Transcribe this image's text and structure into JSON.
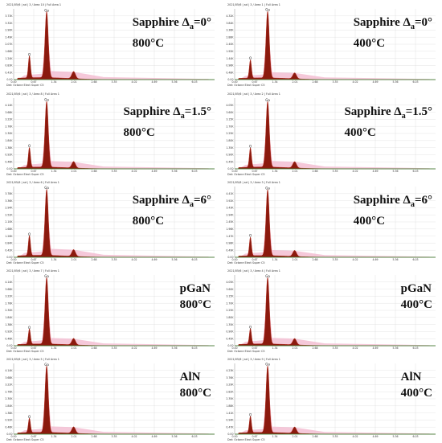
{
  "colors": {
    "spectrum_fill": "#8B1A0E",
    "spectrum_edge": "#B52010",
    "envelope_fill": "#F2B5CC",
    "baseline": "#2E8B3A",
    "grid": "#DDDDDD",
    "axis": "#888888"
  },
  "chart_data": [
    {
      "type": "area",
      "title_line1": "Sapphire Δ",
      "title_sub": "a",
      "title_eq": "=0°",
      "title_line2": "800°C",
      "header": "2021/05/6 | ad | 3 / Area 10 | Full Area 1",
      "footer": "Det: Octane Elect Super C5",
      "x_ticks": [
        "0.00",
        "0.67",
        "1.34",
        "2.01",
        "2.68",
        "3.35",
        "4.02",
        "4.69",
        "5.36",
        "6.03"
      ],
      "y_ticks": [
        "0.00",
        "0.41K",
        "0.83K",
        "1.24K",
        "1.66K",
        "2.07K",
        "2.49K",
        "2.90K",
        "3.32K",
        "3.73K"
      ],
      "ylim": [
        0,
        4.15
      ],
      "xlim": [
        0,
        6.7
      ],
      "peaks": [
        {
          "label": "O",
          "x": 0.525,
          "y": 1.3
        },
        {
          "label": "Ga",
          "x": 1.1,
          "y": 3.9
        },
        {
          "label": "",
          "x": 2.0,
          "y": 0.42
        }
      ]
    },
    {
      "type": "area",
      "title_line1": "Sapphire Δ",
      "title_sub": "a",
      "title_eq": "=0°",
      "title_line2": "400°C",
      "header": "2021/05/6 | ad | 3 / Area 1 | Full Area 1",
      "footer": "Det: Octane Elect Super C5",
      "x_ticks": [
        "0.00",
        "0.67",
        "1.34",
        "2.01",
        "2.68",
        "3.35",
        "4.02",
        "4.69",
        "5.36",
        "6.03"
      ],
      "y_ticks": [
        "0.00",
        "0.48K",
        "0.96K",
        "1.44K",
        "1.92K",
        "2.40K",
        "2.88K",
        "3.36K",
        "3.84K",
        "4.32K"
      ],
      "ylim": [
        0,
        4.8
      ],
      "xlim": [
        0,
        6.7
      ],
      "peaks": [
        {
          "label": "O",
          "x": 0.525,
          "y": 1.25
        },
        {
          "label": "Ga",
          "x": 1.1,
          "y": 4.55
        },
        {
          "label": "",
          "x": 2.0,
          "y": 0.4
        }
      ]
    },
    {
      "type": "area",
      "title_line1": "Sapphire Δ",
      "title_sub": "a",
      "title_eq": "=1.5°",
      "title_line2": "800°C",
      "header": "2021/05/6 | ad | 3 / Area 8 | Full Area 1",
      "footer": "Det: Octane Elect Super C5",
      "x_ticks": [
        "0.00",
        "0.67",
        "1.34",
        "2.01",
        "2.68",
        "3.35",
        "4.02",
        "4.69",
        "5.36",
        "6.03"
      ],
      "y_ticks": [
        "0.00",
        "0.46K",
        "0.92K",
        "1.38K",
        "1.84K",
        "2.30K",
        "2.76K",
        "3.22K",
        "3.68K",
        "4.14K"
      ],
      "ylim": [
        0,
        4.6
      ],
      "xlim": [
        0,
        6.7
      ],
      "peaks": [
        {
          "label": "O",
          "x": 0.525,
          "y": 1.3
        },
        {
          "label": "Ga",
          "x": 1.1,
          "y": 4.3
        },
        {
          "label": "",
          "x": 2.0,
          "y": 0.42
        }
      ]
    },
    {
      "type": "area",
      "title_line1": "Sapphire Δ",
      "title_sub": "a",
      "title_eq": "=1.5°",
      "title_line2": "400°C",
      "header": "2021/05/6 | ad | 3 / Area 2 | Full Area 1",
      "footer": "Det: Octane Elect Super C5",
      "x_ticks": [
        "0.00",
        "0.67",
        "1.34",
        "2.01",
        "2.68",
        "3.35",
        "4.02",
        "4.69",
        "5.36",
        "6.03"
      ],
      "y_ticks": [
        "0.00",
        "0.45K",
        "0.90K",
        "1.35K",
        "1.80K",
        "2.25K",
        "2.70K",
        "3.15K",
        "3.60K",
        "4.05K"
      ],
      "ylim": [
        0,
        4.5
      ],
      "xlim": [
        0,
        6.7
      ],
      "peaks": [
        {
          "label": "O",
          "x": 0.525,
          "y": 1.25
        },
        {
          "label": "Ga",
          "x": 1.1,
          "y": 4.2
        },
        {
          "label": "",
          "x": 2.0,
          "y": 0.4
        }
      ]
    },
    {
      "type": "area",
      "title_line1": "Sapphire Δ",
      "title_sub": "a",
      "title_eq": "=6°",
      "title_line2": "800°C",
      "header": "2021/05/6 | ad | 3 / Area 6 | Full Area 1",
      "footer": "Det: Octane Elect Super C5",
      "x_ticks": [
        "0.00",
        "0.67",
        "1.34",
        "2.01",
        "2.68",
        "3.35",
        "4.02",
        "4.69",
        "5.36",
        "6.03"
      ],
      "y_ticks": [
        "0.00",
        "0.42K",
        "0.84K",
        "1.26K",
        "1.68K",
        "2.10K",
        "2.52K",
        "2.94K",
        "3.36K",
        "3.78K"
      ],
      "ylim": [
        0,
        4.2
      ],
      "xlim": [
        0,
        6.7
      ],
      "peaks": [
        {
          "label": "O",
          "x": 0.525,
          "y": 1.2
        },
        {
          "label": "Ga",
          "x": 1.1,
          "y": 3.95
        },
        {
          "label": "",
          "x": 2.0,
          "y": 0.4
        }
      ]
    },
    {
      "type": "area",
      "title_line1": "Sapphire Δ",
      "title_sub": "a",
      "title_eq": "=6°",
      "title_line2": "400°C",
      "header": "2021/05/6 | ad | 3 / Area 3 | Full Area 1",
      "footer": "Det: Octane Elect Super C5",
      "x_ticks": [
        "0.00",
        "0.67",
        "1.34",
        "2.01",
        "2.68",
        "3.35",
        "4.02",
        "4.69",
        "5.36",
        "6.03"
      ],
      "y_ticks": [
        "0.00",
        "0.49K",
        "0.98K",
        "1.47K",
        "1.96K",
        "2.45K",
        "2.94K",
        "3.43K",
        "3.92K",
        "4.41K"
      ],
      "ylim": [
        0,
        4.9
      ],
      "xlim": [
        0,
        6.7
      ],
      "peaks": [
        {
          "label": "O",
          "x": 0.525,
          "y": 1.3
        },
        {
          "label": "Ga",
          "x": 1.1,
          "y": 4.6
        },
        {
          "label": "",
          "x": 2.0,
          "y": 0.42
        }
      ]
    },
    {
      "type": "area",
      "title_line1": "pGaN",
      "title_sub": "",
      "title_eq": "",
      "title_line2": "800°C",
      "header": "2021/05/6 | ad | 3 / Area 7 | Full Area 1",
      "footer": "Det: Octane Elect Super C5",
      "x_ticks": [
        "0.00",
        "0.67",
        "1.34",
        "2.01",
        "2.68",
        "3.35",
        "4.02",
        "4.69",
        "5.36",
        "6.03"
      ],
      "y_ticks": [
        "0.00",
        "0.46K",
        "0.92K",
        "1.38K",
        "1.84K",
        "2.30K",
        "2.76K",
        "3.22K",
        "3.68K",
        "4.14K"
      ],
      "ylim": [
        0,
        4.6
      ],
      "xlim": [
        0,
        6.7
      ],
      "peaks": [
        {
          "label": "O",
          "x": 0.525,
          "y": 1.0
        },
        {
          "label": "Ga",
          "x": 1.1,
          "y": 4.35
        },
        {
          "label": "",
          "x": 2.0,
          "y": 0.42
        }
      ]
    },
    {
      "type": "area",
      "title_line1": "pGaN",
      "title_sub": "",
      "title_eq": "",
      "title_line2": "400°C",
      "header": "2021/05/6 | ad | 3 / Area 4 | Full Area 1",
      "footer": "Det: Octane Elect Super C5",
      "x_ticks": [
        "0.00",
        "0.67",
        "1.34",
        "2.01",
        "2.68",
        "3.35",
        "4.02",
        "4.69",
        "5.36",
        "6.03"
      ],
      "y_ticks": [
        "0.00",
        "0.45K",
        "0.90K",
        "1.35K",
        "1.80K",
        "2.25K",
        "2.70K",
        "3.15K",
        "3.60K",
        "4.05K"
      ],
      "ylim": [
        0,
        4.5
      ],
      "xlim": [
        0,
        6.7
      ],
      "peaks": [
        {
          "label": "O",
          "x": 0.525,
          "y": 1.0
        },
        {
          "label": "Ga",
          "x": 1.1,
          "y": 4.25
        },
        {
          "label": "",
          "x": 2.0,
          "y": 0.4
        }
      ]
    },
    {
      "type": "area",
      "title_line1": "AlN",
      "title_sub": "",
      "title_eq": "",
      "title_line2": "800°C",
      "header": "2021/05/6 | ad | 3 / Area 5 | Full Area 1",
      "footer": "Det: Octane Elect Super C5",
      "x_ticks": [
        "0.00",
        "0.67",
        "1.34",
        "2.01",
        "2.68",
        "3.35",
        "4.02",
        "4.69",
        "5.36",
        "6.03"
      ],
      "y_ticks": [
        "0.00",
        "0.46K",
        "0.92K",
        "1.38K",
        "1.84K",
        "2.30K",
        "2.76K",
        "3.22K",
        "3.68K",
        "4.14K"
      ],
      "ylim": [
        0,
        4.6
      ],
      "xlim": [
        0,
        6.7
      ],
      "peaks": [
        {
          "label": "O",
          "x": 0.525,
          "y": 0.95
        },
        {
          "label": "Ga",
          "x": 1.1,
          "y": 4.35
        },
        {
          "label": "",
          "x": 2.0,
          "y": 0.42
        }
      ]
    },
    {
      "type": "area",
      "title_line1": "AlN",
      "title_sub": "",
      "title_eq": "",
      "title_line2": "400°C",
      "header": "2021/05/6 | ad | 3 / Area 9 | Full Area 1",
      "footer": "Det: Octane Elect Super C5",
      "x_ticks": [
        "0.00",
        "0.67",
        "1.34",
        "2.01",
        "2.68",
        "3.35",
        "4.02",
        "4.69",
        "5.36",
        "6.03"
      ],
      "y_ticks": [
        "0.00",
        "0.47K",
        "0.94K",
        "1.41K",
        "1.88K",
        "2.35K",
        "2.82K",
        "3.29K",
        "3.76K",
        "4.23K"
      ],
      "ylim": [
        0,
        4.7
      ],
      "xlim": [
        0,
        6.7
      ],
      "peaks": [
        {
          "label": "O",
          "x": 0.525,
          "y": 1.1
        },
        {
          "label": "Ga",
          "x": 1.1,
          "y": 4.45
        },
        {
          "label": "",
          "x": 2.0,
          "y": 0.42
        }
      ]
    }
  ]
}
